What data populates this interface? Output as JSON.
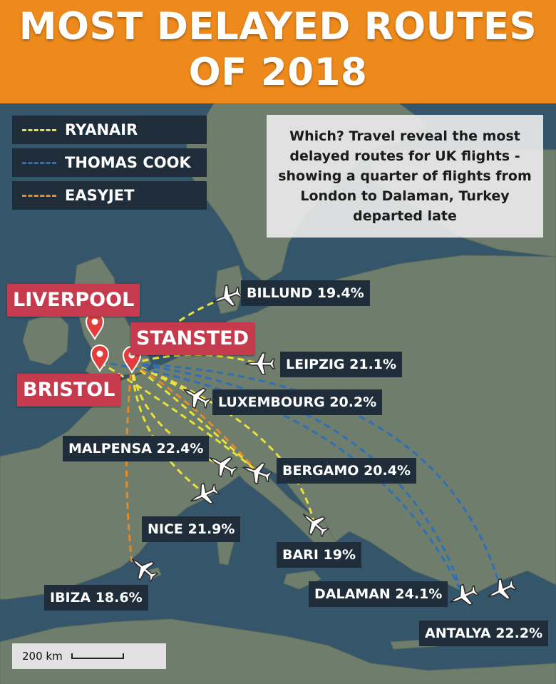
{
  "title": "MOST DELAYED ROUTES OF 2018",
  "colors": {
    "header": "#ee8a1b",
    "ryanair": "#e8e03c",
    "thomas_cook": "#2f6fb5",
    "easyjet": "#e48a2a",
    "origin_label": "#c53a4d",
    "destination_label": "#1f2d3a",
    "sea": "#35556a",
    "land": "#6f7d6c"
  },
  "legend": [
    {
      "label": "RYANAIR",
      "color": "#e8e03c"
    },
    {
      "label": "THOMAS COOK",
      "color": "#2f6fb5"
    },
    {
      "label": "EASYJET",
      "color": "#e48a2a"
    }
  ],
  "info_text": "Which? Travel reveal the most delayed routes for UK flights - showing a quarter of flights from London to Dalaman, Turkey departed late",
  "origins": {
    "liverpool": "LIVERPOOL",
    "stansted": "STANSTED",
    "bristol": "BRISTOL"
  },
  "destinations": {
    "billund": "BILLUND 19.4%",
    "leipzig": "LEIPZIG 21.1%",
    "luxembourg": "LUXEMBOURG 20.2%",
    "malpensa": "MALPENSA 22.4%",
    "bergamo": "BERGAMO 20.4%",
    "nice": "NICE 21.9%",
    "bari": "BARI 19%",
    "ibiza": "IBIZA 18.6%",
    "dalaman": "DALAMAN 24.1%",
    "antalya": "ANTALYA 22.2%"
  },
  "scale": {
    "label": "200 km"
  },
  "icons": {
    "origin": "map-pin-icon",
    "destination": "airplane-icon"
  }
}
